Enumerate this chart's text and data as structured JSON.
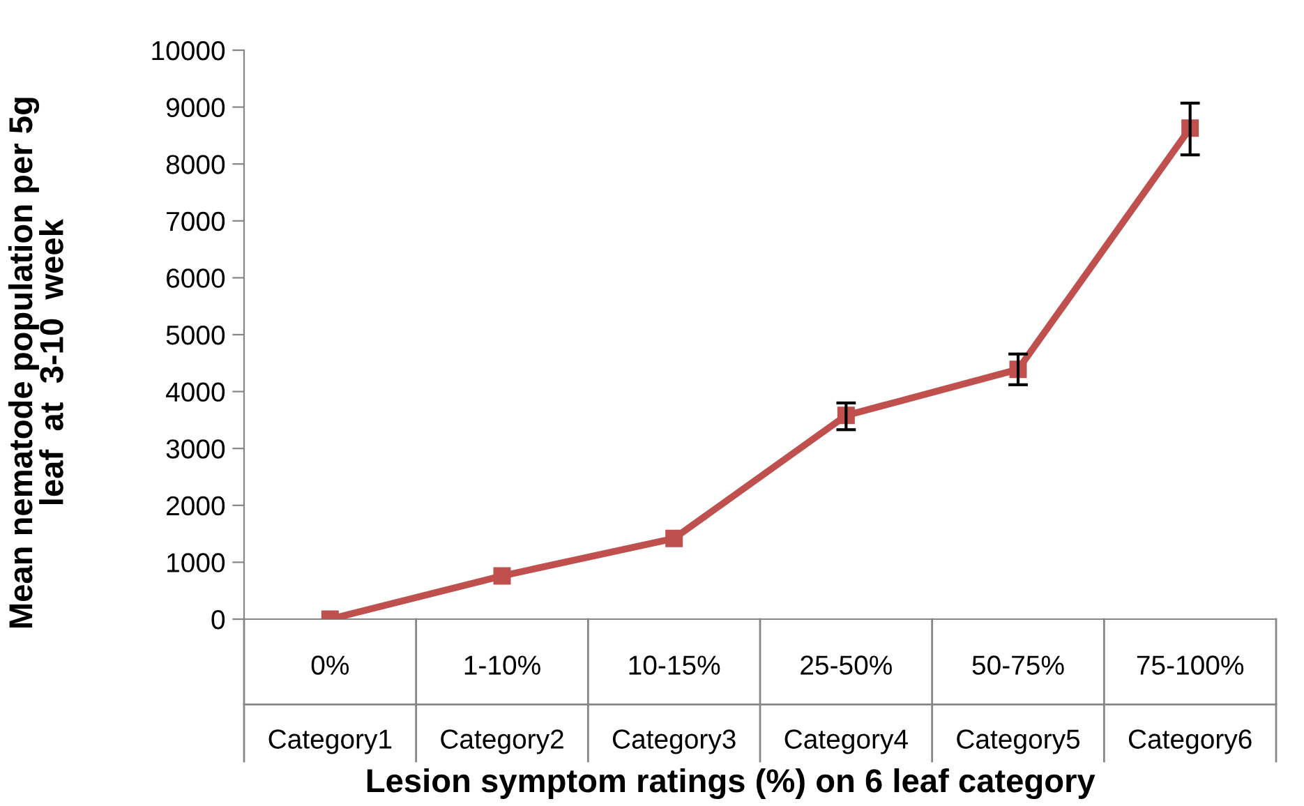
{
  "chart_data": {
    "type": "line",
    "xlabel": "Lesion symptom ratings (%) on 6 leaf category",
    "ylabel": "Mean nematode population per 5g\nleaf  at  3-10  week",
    "categories": [
      "0%\nCategory1",
      "1-10%\nCategory2",
      "10-15%\nCategory3",
      "25-50%\nCategory4",
      "50-75%\nCategory5",
      "75-100%\nCategory6"
    ],
    "series": [
      {
        "color": "#c0504d",
        "values": [
          0,
          760,
          1420,
          3580,
          4390,
          8630
        ],
        "errors": [
          null,
          null,
          null,
          [
            3330,
            3800
          ],
          [
            4120,
            4660
          ],
          [
            8160,
            9070
          ]
        ]
      }
    ],
    "ylim": [
      0,
      10000
    ],
    "yticks": [
      0,
      1000,
      2000,
      3000,
      4000,
      5000,
      6000,
      7000,
      8000,
      9000,
      10000
    ],
    "grid": false,
    "legend": false,
    "marker": "square",
    "line_style": "solid"
  }
}
